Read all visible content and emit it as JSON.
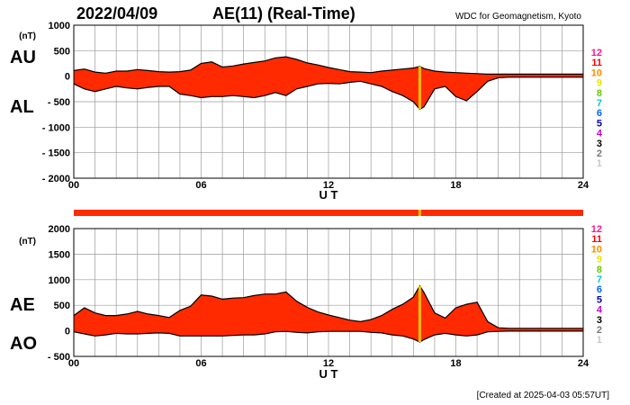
{
  "header": {
    "date": "2022/04/09",
    "title": "AE(11) (Real-Time)",
    "organization": "WDC for Geomagnetism, Kyoto",
    "created": "[Created at 2025-04-03 05:57UT]"
  },
  "colors": {
    "fill": "#ff2a00",
    "marker": "#f5c000",
    "grid": "#9a9a9a",
    "outline": "#000000"
  },
  "hour_legend": [
    {
      "label": "12",
      "color": "#ff1493"
    },
    {
      "label": "11",
      "color": "#ff0000"
    },
    {
      "label": "10",
      "color": "#ff8c00"
    },
    {
      "label": "9",
      "color": "#e6e600"
    },
    {
      "label": "8",
      "color": "#66cc00"
    },
    {
      "label": "7",
      "color": "#00c8c8"
    },
    {
      "label": "6",
      "color": "#0066ff"
    },
    {
      "label": "5",
      "color": "#0000cc"
    },
    {
      "label": "4",
      "color": "#cc00cc"
    },
    {
      "label": "3",
      "color": "#000000"
    },
    {
      "label": "2",
      "color": "#777777"
    },
    {
      "label": "1",
      "color": "#c8c8c8"
    }
  ],
  "chart_data": [
    {
      "type": "area",
      "series": [
        {
          "name": "AU"
        },
        {
          "name": "AL"
        }
      ],
      "unit_label": "(nT)",
      "ylim": [
        -2000,
        1000
      ],
      "yticks": [
        "1000",
        "500",
        "0",
        "- 500",
        "- 1000",
        "- 1500",
        "- 2000"
      ],
      "xlim": [
        0,
        24
      ],
      "xticks": [
        "00",
        "06",
        "12",
        "18",
        "24"
      ],
      "xlabel": "U T",
      "grid": true,
      "marker_hour": 16.3,
      "x": [
        0,
        0.5,
        1,
        1.5,
        2,
        2.5,
        3,
        3.5,
        4,
        4.5,
        5,
        5.5,
        6,
        6.5,
        7,
        7.5,
        8,
        8.5,
        9,
        9.5,
        10,
        10.5,
        11,
        11.5,
        12,
        12.5,
        13,
        13.5,
        14,
        14.5,
        15,
        15.5,
        16,
        16.3,
        16.5,
        17,
        17.5,
        18,
        18.5,
        19,
        19.5,
        20,
        20.5,
        21,
        21.5,
        22,
        22.5,
        23,
        23.5,
        24
      ],
      "upper": [
        110,
        140,
        80,
        60,
        100,
        100,
        130,
        110,
        90,
        80,
        90,
        120,
        250,
        280,
        180,
        200,
        240,
        270,
        300,
        360,
        380,
        330,
        260,
        220,
        170,
        130,
        90,
        80,
        70,
        100,
        120,
        140,
        160,
        190,
        150,
        100,
        80,
        70,
        60,
        50,
        40,
        40,
        40,
        40,
        40,
        40,
        40,
        40,
        40,
        40
      ],
      "lower": [
        -150,
        -250,
        -300,
        -250,
        -200,
        -230,
        -250,
        -220,
        -200,
        -200,
        -350,
        -380,
        -420,
        -400,
        -400,
        -380,
        -400,
        -420,
        -380,
        -320,
        -380,
        -250,
        -200,
        -150,
        -140,
        -150,
        -120,
        -100,
        -150,
        -200,
        -300,
        -380,
        -500,
        -650,
        -600,
        -250,
        -200,
        -400,
        -480,
        -300,
        -100,
        -30,
        -20,
        -20,
        -20,
        -20,
        -20,
        -20,
        -20,
        -20
      ]
    },
    {
      "type": "area",
      "series": [
        {
          "name": "AE"
        },
        {
          "name": "AO"
        }
      ],
      "unit_label": "(nT)",
      "ylim": [
        -500,
        2000
      ],
      "yticks": [
        "2000",
        "1500",
        "1000",
        "500",
        "0",
        "- 500"
      ],
      "xlim": [
        0,
        24
      ],
      "xticks": [
        "00",
        "06",
        "12",
        "18",
        "24"
      ],
      "xlabel": "U T",
      "grid": true,
      "marker_hour": 16.3,
      "x": [
        0,
        0.5,
        1,
        1.5,
        2,
        2.5,
        3,
        3.5,
        4,
        4.5,
        5,
        5.5,
        6,
        6.5,
        7,
        7.5,
        8,
        8.5,
        9,
        9.5,
        10,
        10.5,
        11,
        11.5,
        12,
        12.5,
        13,
        13.5,
        14,
        14.5,
        15,
        15.5,
        16,
        16.3,
        16.5,
        17,
        17.5,
        18,
        18.5,
        19,
        19.5,
        20,
        20.5,
        21,
        21.5,
        22,
        22.5,
        23,
        23.5,
        24
      ],
      "upper": [
        300,
        450,
        350,
        300,
        300,
        330,
        380,
        330,
        300,
        260,
        400,
        480,
        700,
        680,
        620,
        640,
        650,
        690,
        720,
        720,
        760,
        580,
        460,
        370,
        310,
        260,
        210,
        180,
        220,
        300,
        420,
        520,
        660,
        880,
        750,
        350,
        250,
        450,
        520,
        560,
        180,
        60,
        50,
        50,
        50,
        50,
        50,
        50,
        50,
        50
      ],
      "lower": [
        -20,
        -60,
        -100,
        -80,
        -50,
        -60,
        -60,
        -50,
        -40,
        -50,
        -100,
        -100,
        -100,
        -100,
        -100,
        -90,
        -80,
        -80,
        -60,
        -20,
        -10,
        -30,
        -40,
        -20,
        -10,
        -10,
        -10,
        -10,
        -30,
        -40,
        -80,
        -100,
        -160,
        -220,
        -170,
        -80,
        -50,
        -80,
        -100,
        -80,
        -20,
        -10,
        -5,
        -5,
        -5,
        -5,
        -5,
        -5,
        -5,
        -5
      ]
    }
  ],
  "activity_bar": {
    "label_hour": 16.3
  }
}
